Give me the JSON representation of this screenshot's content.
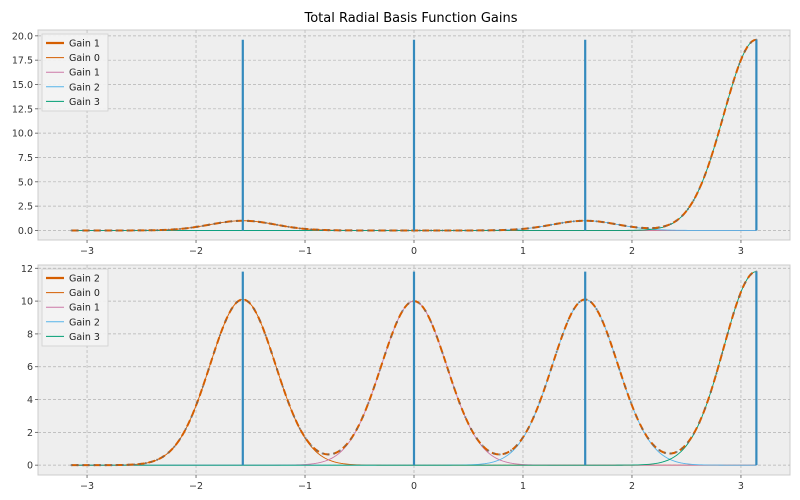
{
  "title": "Total Radial Basis Function Gains",
  "colors": {
    "axes_bg": "#eeeeee",
    "grid": "#b2b2b2",
    "total": "#d55e00",
    "gain0": "#d55e00",
    "gain1": "#cc79a7",
    "gain2": "#56b4e9",
    "gain3": "#009e73",
    "centers": "#348abd",
    "dots_line": "#666666"
  },
  "chart_data": [
    {
      "type": "line",
      "title": "Total Radial Basis Function Gains",
      "xlim": [
        -3.45,
        3.45
      ],
      "ylim": [
        -0.98,
        20.6
      ],
      "xticks": [
        -3,
        -2,
        -1,
        0,
        1,
        2,
        3
      ],
      "xtick_labels": [
        "−3",
        "−2",
        "−1",
        "0",
        "1",
        "2",
        "3"
      ],
      "yticks": [
        0,
        2.5,
        5,
        7.5,
        10,
        12.5,
        15,
        17.5,
        20
      ],
      "ytick_labels": [
        "0.0",
        "2.5",
        "5.0",
        "7.5",
        "10.0",
        "12.5",
        "15.0",
        "17.5",
        "20.0"
      ],
      "grid": true,
      "legend_position": "upper-left",
      "legend": [
        "Gain 1",
        "Gain 0",
        "Gain 1",
        "Gain 2",
        "Gain 3"
      ],
      "centers": [
        -1.5708,
        0,
        1.5708,
        3.1416
      ],
      "center_height": 19.6,
      "x_range": [
        -3.1416,
        3.1416
      ],
      "sigma": 0.3,
      "series": [
        {
          "name": "Gain 0",
          "center": -1.5708,
          "amplitude": 1.0
        },
        {
          "name": "Gain 1",
          "center": 0,
          "amplitude": 0.0
        },
        {
          "name": "Gain 2",
          "center": 1.5708,
          "amplitude": 1.0
        },
        {
          "name": "Gain 3",
          "center": 3.1416,
          "amplitude": 19.6
        }
      ]
    },
    {
      "type": "line",
      "title": "",
      "xlim": [
        -3.45,
        3.45
      ],
      "ylim": [
        -0.6,
        12.2
      ],
      "xticks": [
        -3,
        -2,
        -1,
        0,
        1,
        2,
        3
      ],
      "xtick_labels": [
        "−3",
        "−2",
        "−1",
        "0",
        "1",
        "2",
        "3"
      ],
      "yticks": [
        0,
        2,
        4,
        6,
        8,
        10,
        12
      ],
      "ytick_labels": [
        "0",
        "2",
        "4",
        "6",
        "8",
        "10",
        "12"
      ],
      "grid": true,
      "legend_position": "upper-left",
      "legend": [
        "Gain 2",
        "Gain 0",
        "Gain 1",
        "Gain 2",
        "Gain 3"
      ],
      "centers": [
        -1.5708,
        0,
        1.5708,
        3.1416
      ],
      "center_height": 11.8,
      "x_range": [
        -3.1416,
        3.1416
      ],
      "sigma": 0.3,
      "series": [
        {
          "name": "Gain 0",
          "center": -1.5708,
          "amplitude": 10.1
        },
        {
          "name": "Gain 1",
          "center": 0,
          "amplitude": 10.0
        },
        {
          "name": "Gain 2",
          "center": 1.5708,
          "amplitude": 10.1
        },
        {
          "name": "Gain 3",
          "center": 3.1416,
          "amplitude": 11.8
        }
      ]
    }
  ]
}
